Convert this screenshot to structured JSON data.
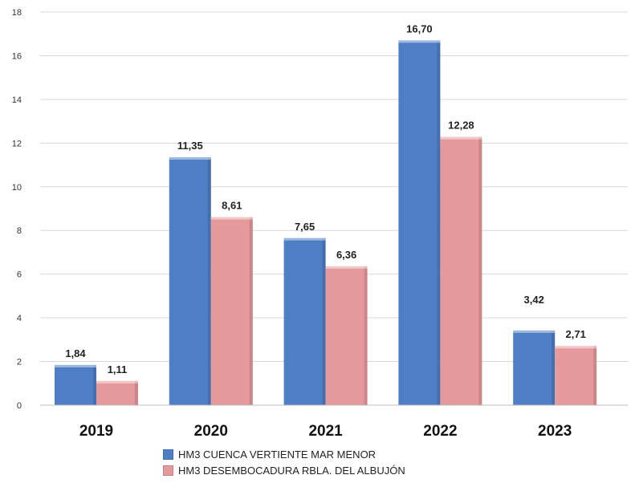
{
  "chart_data": {
    "type": "bar",
    "categories": [
      "2019",
      "2020",
      "2021",
      "2022",
      "2023"
    ],
    "series": [
      {
        "name": "HM3 CUENCA VERTIENTE MAR MENOR",
        "values": [
          1.84,
          11.35,
          7.65,
          16.7,
          3.42
        ],
        "labels": [
          "1,84",
          "11,35",
          "7,65",
          "16,70",
          "3,42"
        ],
        "color": "#4e7fc6"
      },
      {
        "name": "HM3 DESEMBOCADURA RBLA. DEL ALBUJÓN",
        "values": [
          1.11,
          8.61,
          6.36,
          12.28,
          2.71
        ],
        "labels": [
          "1,11",
          "8,61",
          "6,36",
          "12,28",
          "2,71"
        ],
        "color": "#e6999b"
      }
    ],
    "ylim": [
      0,
      18
    ],
    "yticks": [
      "0",
      "2",
      "4",
      "6",
      "8",
      "10",
      "12",
      "14",
      "16",
      "18"
    ],
    "grid": true,
    "legend_position": "bottom"
  }
}
